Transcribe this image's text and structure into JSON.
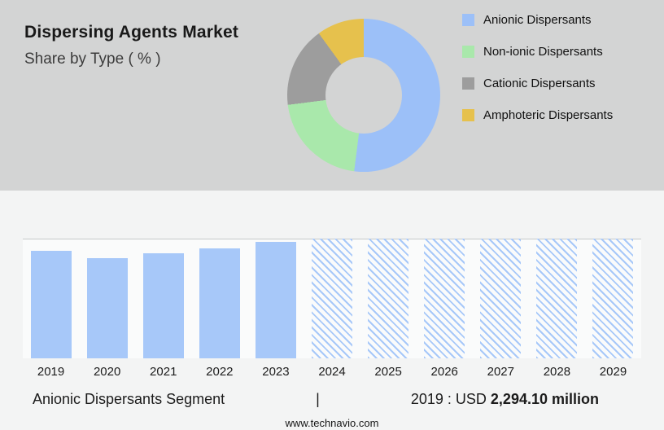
{
  "header": {
    "title": "Dispersing Agents Market",
    "subtitle": "Share by Type ( % )"
  },
  "chart_data": [
    {
      "type": "pie",
      "donut": true,
      "title": "Dispersing Agents Market — Share by Type ( % )",
      "labels": [
        "Anionic Dispersants",
        "Non-ionic Dispersants",
        "Cationic Dispersants",
        "Amphoteric Dispersants"
      ],
      "values_pct_est": [
        52,
        21,
        17,
        10
      ],
      "colors": [
        "#9cc0f8",
        "#a9e8ab",
        "#9d9d9d",
        "#e6c14d"
      ],
      "legend_position": "right",
      "hole_color": "#d3d4d4"
    },
    {
      "type": "bar",
      "categories": [
        "2019",
        "2020",
        "2021",
        "2022",
        "2023",
        "2024",
        "2025",
        "2026",
        "2027",
        "2028",
        "2029"
      ],
      "values_usd_million_est": [
        2294.1,
        2140,
        2240,
        2350,
        2490,
        null,
        null,
        null,
        null,
        null,
        null
      ],
      "known_value": {
        "year": "2019",
        "value": 2294.1,
        "unit": "USD million"
      },
      "forecast_years": [
        "2024",
        "2025",
        "2026",
        "2027",
        "2028",
        "2029"
      ],
      "forecast_style": "hatched",
      "forecast_display_value": 2560,
      "bar_color": "#a7c8f9",
      "ylim": [
        0,
        2560
      ],
      "grid": false,
      "legend_position": "none"
    }
  ],
  "footer": {
    "segment": "Anionic Dispersants Segment",
    "divider": "|",
    "value_prefix": "2019 : USD",
    "value_bold": "2,294.10 million"
  },
  "website": "www.technavio.com"
}
